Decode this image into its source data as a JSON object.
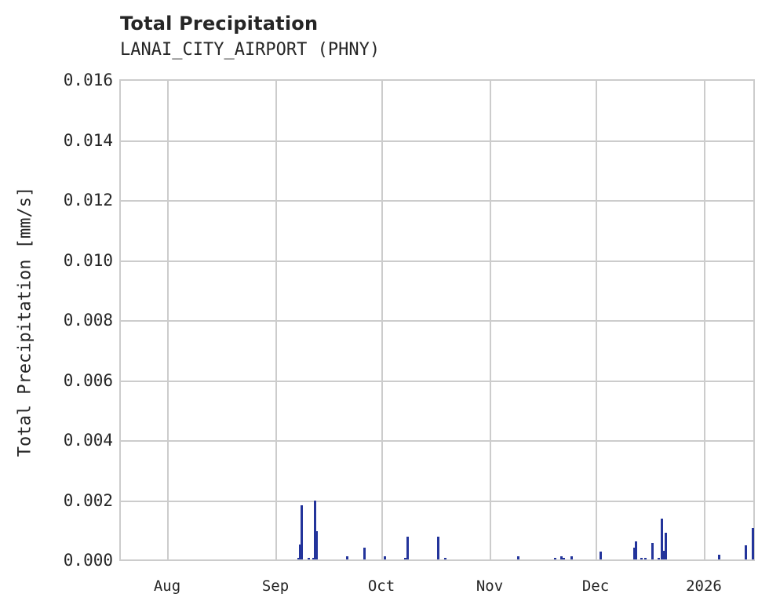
{
  "chart_data": {
    "type": "bar",
    "title": "Total Precipitation",
    "subtitle": "LANAI_CITY_AIRPORT (PHNY)",
    "xlabel": "",
    "ylabel": "Total Precipitation [mm/s]",
    "ylim": [
      0,
      0.016
    ],
    "y_ticks": [
      "0.000",
      "0.002",
      "0.004",
      "0.006",
      "0.008",
      "0.010",
      "0.012",
      "0.014",
      "0.016"
    ],
    "x_ticks": [
      "Aug",
      "Sep",
      "Oct",
      "Nov",
      "Dec",
      "2026"
    ],
    "grid": true,
    "bar_color": "#23349b",
    "x_range_approx": [
      "2025-07-18",
      "2026-01-18"
    ],
    "points": [
      {
        "date": "2025-09-07",
        "value": 5e-05
      },
      {
        "date": "2025-09-08",
        "value": 0.0005
      },
      {
        "date": "2025-09-09",
        "value": 0.0018
      },
      {
        "date": "2025-09-11",
        "value": 5e-05
      },
      {
        "date": "2025-09-13",
        "value": 5e-05
      },
      {
        "date": "2025-09-13",
        "value": 0.00197
      },
      {
        "date": "2025-09-14",
        "value": 0.00095
      },
      {
        "date": "2025-09-21",
        "value": 0.0001
      },
      {
        "date": "2025-09-26",
        "value": 0.0004
      },
      {
        "date": "2025-10-01",
        "value": 0.0001
      },
      {
        "date": "2025-10-07",
        "value": 5e-05
      },
      {
        "date": "2025-10-08",
        "value": 0.00075
      },
      {
        "date": "2025-10-16",
        "value": 0.00075
      },
      {
        "date": "2025-10-18",
        "value": 5e-05
      },
      {
        "date": "2025-11-08",
        "value": 0.0001
      },
      {
        "date": "2025-11-19",
        "value": 5e-05
      },
      {
        "date": "2025-11-21",
        "value": 0.0001
      },
      {
        "date": "2025-11-22",
        "value": 5e-05
      },
      {
        "date": "2025-11-24",
        "value": 0.0001
      },
      {
        "date": "2025-12-02",
        "value": 0.00025
      },
      {
        "date": "2025-12-11",
        "value": 0.0004
      },
      {
        "date": "2025-12-12",
        "value": 0.0006
      },
      {
        "date": "2025-12-13",
        "value": 5e-05
      },
      {
        "date": "2025-12-14",
        "value": 5e-05
      },
      {
        "date": "2025-12-16",
        "value": 0.00055
      },
      {
        "date": "2025-12-18",
        "value": 5e-05
      },
      {
        "date": "2025-12-19",
        "value": 0.00135
      },
      {
        "date": "2025-12-19",
        "value": 0.0003
      },
      {
        "date": "2025-12-20",
        "value": 0.0009
      },
      {
        "date": "2026-01-04",
        "value": 0.00015
      },
      {
        "date": "2026-01-12",
        "value": 0.00048
      },
      {
        "date": "2026-01-14",
        "value": 0.00105
      }
    ],
    "bar_pixels": [
      {
        "x": 380,
        "v": 5e-05
      },
      {
        "x": 382,
        "v": 0.0005
      },
      {
        "x": 384,
        "v": 0.0018
      },
      {
        "x": 393,
        "v": 5e-05
      },
      {
        "x": 399,
        "v": 5e-05
      },
      {
        "x": 401,
        "v": 0.00197
      },
      {
        "x": 403,
        "v": 0.00095
      },
      {
        "x": 442,
        "v": 0.0001
      },
      {
        "x": 464,
        "v": 0.0004
      },
      {
        "x": 490,
        "v": 0.0001
      },
      {
        "x": 516,
        "v": 5e-05
      },
      {
        "x": 519,
        "v": 0.00075
      },
      {
        "x": 558,
        "v": 0.00075
      },
      {
        "x": 567,
        "v": 5e-05
      },
      {
        "x": 660,
        "v": 0.0001
      },
      {
        "x": 707,
        "v": 5e-05
      },
      {
        "x": 715,
        "v": 0.0001
      },
      {
        "x": 718,
        "v": 5e-05
      },
      {
        "x": 728,
        "v": 0.0001
      },
      {
        "x": 765,
        "v": 0.00025
      },
      {
        "x": 808,
        "v": 0.0004
      },
      {
        "x": 810,
        "v": 0.0006
      },
      {
        "x": 817,
        "v": 5e-05
      },
      {
        "x": 822,
        "v": 5e-05
      },
      {
        "x": 831,
        "v": 0.00055
      },
      {
        "x": 839,
        "v": 5e-05
      },
      {
        "x": 843,
        "v": 0.00135
      },
      {
        "x": 845,
        "v": 0.0003
      },
      {
        "x": 848,
        "v": 0.0009
      },
      {
        "x": 916,
        "v": 0.00015
      },
      {
        "x": 950,
        "v": 0.00048
      },
      {
        "x": 959,
        "v": 0.00105
      }
    ]
  }
}
